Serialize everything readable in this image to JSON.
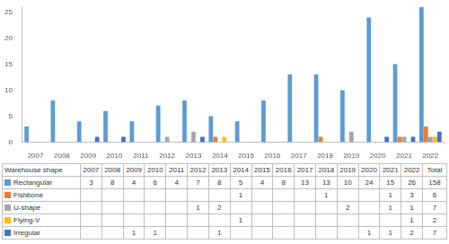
{
  "chart_data": {
    "type": "bar",
    "categories": [
      "2007",
      "2008",
      "2009",
      "2010",
      "2011",
      "2012",
      "2013",
      "2014",
      "2015",
      "2016",
      "2017",
      "2018",
      "2019",
      "2020",
      "2021",
      "2022"
    ],
    "series": [
      {
        "name": "Rectangular",
        "color": "#5b9bd5",
        "values": [
          3,
          8,
          4,
          6,
          4,
          7,
          8,
          5,
          4,
          8,
          13,
          13,
          10,
          24,
          15,
          26
        ]
      },
      {
        "name": "Fishbone",
        "color": "#ed7d31",
        "values": [
          null,
          null,
          null,
          null,
          null,
          null,
          null,
          1,
          null,
          null,
          null,
          1,
          null,
          null,
          1,
          3
        ]
      },
      {
        "name": "U-shape",
        "color": "#a5a5a5",
        "values": [
          null,
          null,
          null,
          null,
          null,
          1,
          2,
          null,
          null,
          null,
          null,
          null,
          2,
          null,
          1,
          1
        ]
      },
      {
        "name": "Flying-V",
        "color": "#ffc000",
        "values": [
          null,
          null,
          null,
          null,
          null,
          null,
          null,
          1,
          null,
          null,
          null,
          null,
          null,
          null,
          null,
          1
        ]
      },
      {
        "name": "Irregular",
        "color": "#4472c4",
        "values": [
          null,
          null,
          1,
          1,
          null,
          null,
          1,
          null,
          null,
          null,
          null,
          null,
          null,
          1,
          1,
          2
        ]
      }
    ],
    "ylim": [
      0,
      26
    ],
    "yticks": [
      0,
      5,
      10,
      15,
      20,
      25
    ],
    "grid": false
  },
  "table": {
    "header": "Warehouse shape",
    "total_label": "Total",
    "totals": [
      158,
      6,
      7,
      2,
      7
    ]
  }
}
